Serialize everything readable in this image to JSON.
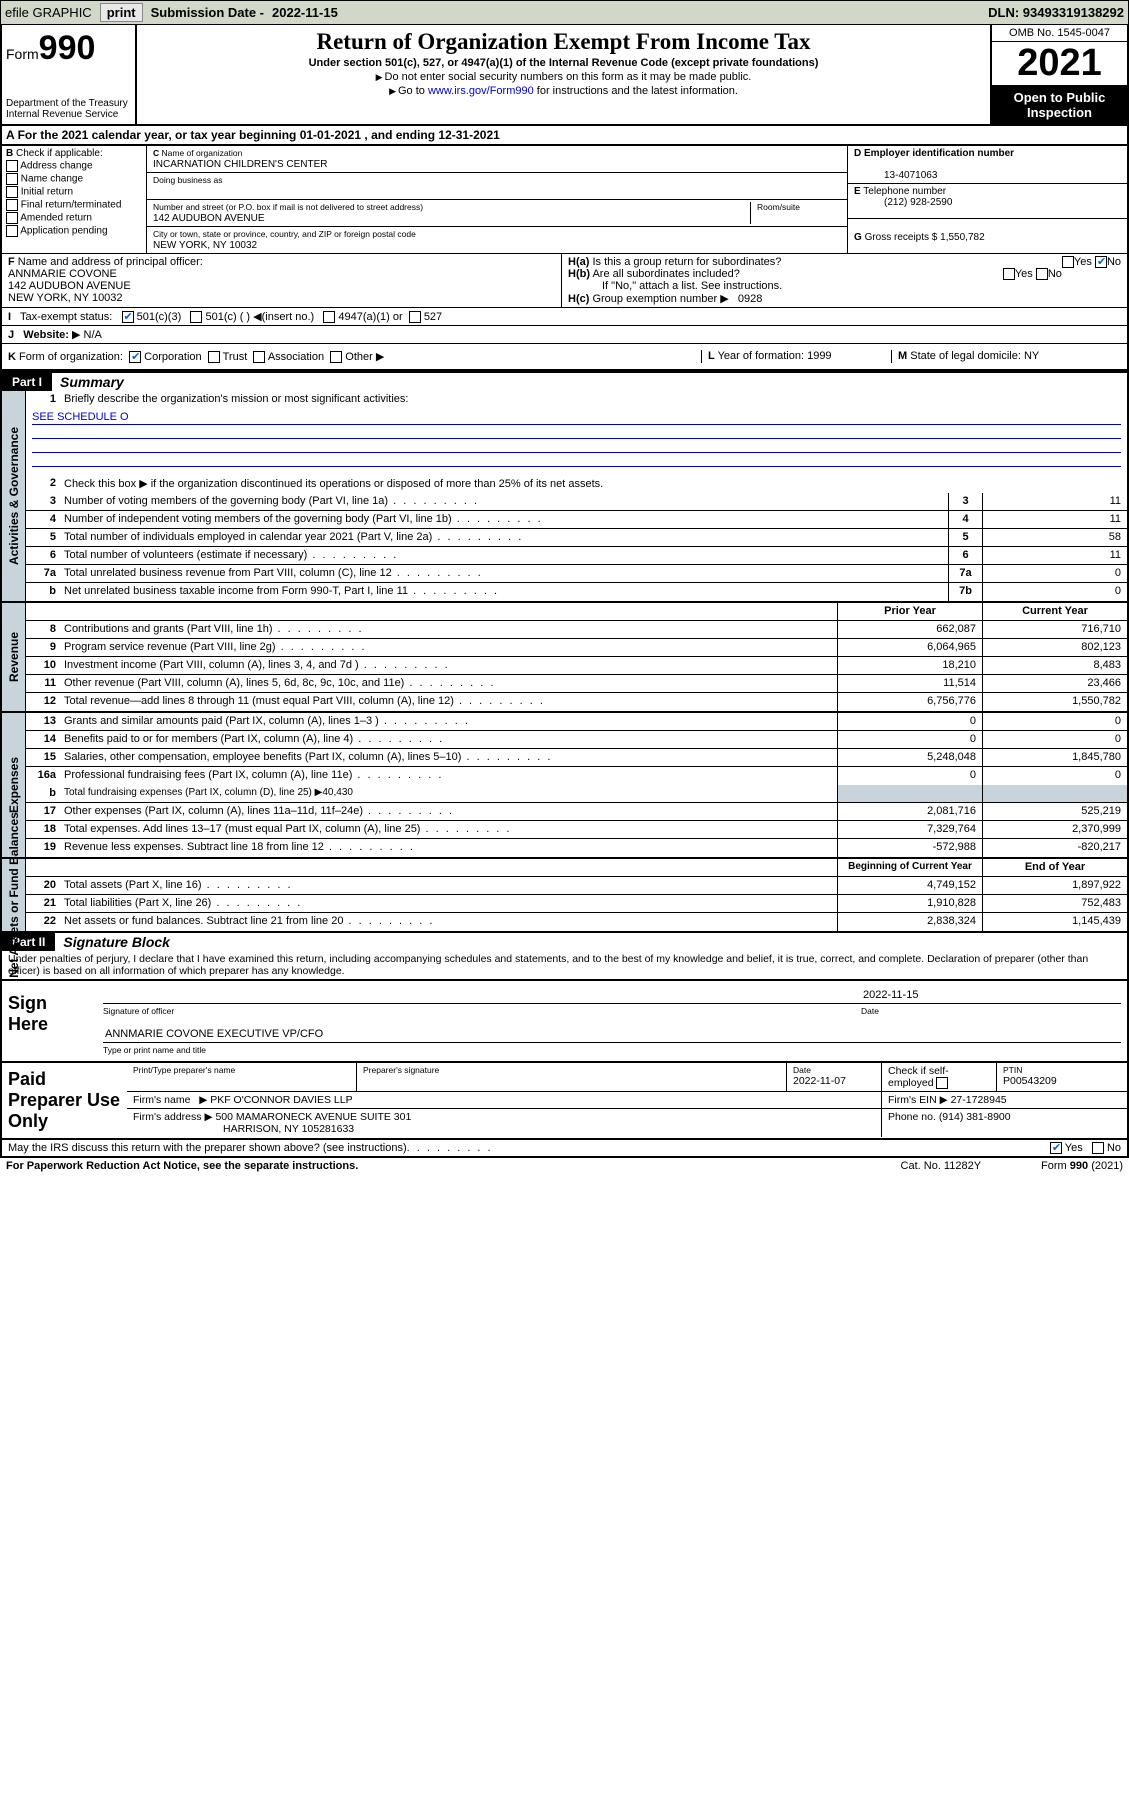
{
  "topbar": {
    "efile": "efile GRAPHIC",
    "print": "print",
    "sub_lbl": "Submission Date -",
    "sub_date": "2022-11-15",
    "dln": "DLN: 93493319138292"
  },
  "header": {
    "form_word": "Form",
    "form_num": "990",
    "dept": "Department of the Treasury",
    "irs": "Internal Revenue Service",
    "title": "Return of Organization Exempt From Income Tax",
    "sub1": "Under section 501(c), 527, or 4947(a)(1) of the Internal Revenue Code (except private foundations)",
    "sub2": "Do not enter social security numbers on this form as it may be made public.",
    "sub3_a": "Go to ",
    "sub3_link": "www.irs.gov/Form990",
    "sub3_b": " for instructions and the latest information.",
    "omb": "OMB No. 1545-0047",
    "year": "2021",
    "open": "Open to Public Inspection"
  },
  "A": {
    "text": "For the 2021 calendar year, or tax year beginning 01-01-2021   , and ending 12-31-2021"
  },
  "B": {
    "intro": "Check if applicable:",
    "opts": [
      "Address change",
      "Name change",
      "Initial return",
      "Final return/terminated",
      "Amended return",
      "Application pending"
    ],
    "lead": "B"
  },
  "C": {
    "name_lbl": "Name of organization",
    "name": "INCARNATION CHILDREN'S CENTER",
    "dba_lbl": "Doing business as",
    "dba": "",
    "street_lbl": "Number and street (or P.O. box if mail is not delivered to street address)",
    "room_lbl": "Room/suite",
    "street": "142 AUDUBON AVENUE",
    "city_lbl": "City or town, state or province, country, and ZIP or foreign postal code",
    "city": "NEW YORK, NY  10032",
    "lead": "C"
  },
  "D": {
    "lbl": "Employer identification number",
    "val": "13-4071063",
    "lead": "D"
  },
  "E": {
    "lbl": "Telephone number",
    "val": "(212) 928-2590",
    "lead": "E"
  },
  "G": {
    "lbl": "Gross receipts $",
    "val": "1,550,782",
    "lead": "G"
  },
  "F": {
    "lbl": "Name and address of principal officer:",
    "name": "ANNMARIE COVONE",
    "addr1": "142 AUDUBON AVENUE",
    "addr2": "NEW YORK, NY  10032",
    "lead": "F"
  },
  "H": {
    "a_lbl": "Is this a group return for subordinates?",
    "a_lead": "H(a)",
    "b_lbl": "Are all subordinates included?",
    "b_lead": "H(b)",
    "b_note": "If \"No,\" attach a list. See instructions.",
    "c_lbl": "Group exemption number",
    "c_lead": "H(c)",
    "c_val": "0928",
    "yes": "Yes",
    "no": "No"
  },
  "I": {
    "lbl": "Tax-exempt status:",
    "lead": "I",
    "o1": "501(c)(3)",
    "o2": "501(c) (  )",
    "o2b": "(insert no.)",
    "o3": "4947(a)(1) or",
    "o4": "527"
  },
  "J": {
    "lbl": "Website:",
    "val": "N/A",
    "lead": "J"
  },
  "K": {
    "lbl": "Form of organization:",
    "o1": "Corporation",
    "o2": "Trust",
    "o3": "Association",
    "o4": "Other",
    "lead": "K"
  },
  "L": {
    "lbl": "Year of formation:",
    "val": "1999",
    "lead": "L"
  },
  "M": {
    "lbl": "State of legal domicile:",
    "val": "NY",
    "lead": "M"
  },
  "partI": {
    "num": "Part I",
    "title": "Summary"
  },
  "summary": {
    "tabs": [
      "Activities & Governance",
      "Revenue",
      "Expenses",
      "Net Assets or Fund Balances"
    ],
    "q1": "Briefly describe the organization's mission or most significant activities:",
    "q1_ans": "SEE SCHEDULE O",
    "q2": "Check this box ▶   if the organization discontinued its operations or disposed of more than 25% of its net assets.",
    "rows_gov": [
      {
        "n": "3",
        "t": "Number of voting members of the governing body (Part VI, line 1a)",
        "box": "3",
        "v": "11"
      },
      {
        "n": "4",
        "t": "Number of independent voting members of the governing body (Part VI, line 1b)",
        "box": "4",
        "v": "11"
      },
      {
        "n": "5",
        "t": "Total number of individuals employed in calendar year 2021 (Part V, line 2a)",
        "box": "5",
        "v": "58"
      },
      {
        "n": "6",
        "t": "Total number of volunteers (estimate if necessary)",
        "box": "6",
        "v": "11"
      },
      {
        "n": "7a",
        "t": "Total unrelated business revenue from Part VIII, column (C), line 12",
        "box": "7a",
        "v": "0"
      },
      {
        "n": "b",
        "t": "Net unrelated business taxable income from Form 990-T, Part I, line 11",
        "box": "7b",
        "v": "0"
      }
    ],
    "hdr_prior": "Prior Year",
    "hdr_curr": "Current Year",
    "rows_rev": [
      {
        "n": "8",
        "t": "Contributions and grants (Part VIII, line 1h)",
        "p": "662,087",
        "c": "716,710"
      },
      {
        "n": "9",
        "t": "Program service revenue (Part VIII, line 2g)",
        "p": "6,064,965",
        "c": "802,123"
      },
      {
        "n": "10",
        "t": "Investment income (Part VIII, column (A), lines 3, 4, and 7d )",
        "p": "18,210",
        "c": "8,483"
      },
      {
        "n": "11",
        "t": "Other revenue (Part VIII, column (A), lines 5, 6d, 8c, 9c, 10c, and 11e)",
        "p": "11,514",
        "c": "23,466"
      },
      {
        "n": "12",
        "t": "Total revenue—add lines 8 through 11 (must equal Part VIII, column (A), line 12)",
        "p": "6,756,776",
        "c": "1,550,782"
      }
    ],
    "rows_exp": [
      {
        "n": "13",
        "t": "Grants and similar amounts paid (Part IX, column (A), lines 1–3 )",
        "p": "0",
        "c": "0"
      },
      {
        "n": "14",
        "t": "Benefits paid to or for members (Part IX, column (A), line 4)",
        "p": "0",
        "c": "0"
      },
      {
        "n": "15",
        "t": "Salaries, other compensation, employee benefits (Part IX, column (A), lines 5–10)",
        "p": "5,248,048",
        "c": "1,845,780"
      },
      {
        "n": "16a",
        "t": "Professional fundraising fees (Part IX, column (A), line 11e)",
        "p": "0",
        "c": "0"
      }
    ],
    "row_16b": {
      "n": "b",
      "t": "Total fundraising expenses (Part IX, column (D), line 25) ▶40,430"
    },
    "rows_exp2": [
      {
        "n": "17",
        "t": "Other expenses (Part IX, column (A), lines 11a–11d, 11f–24e)",
        "p": "2,081,716",
        "c": "525,219"
      },
      {
        "n": "18",
        "t": "Total expenses. Add lines 13–17 (must equal Part IX, column (A), line 25)",
        "p": "7,329,764",
        "c": "2,370,999"
      },
      {
        "n": "19",
        "t": "Revenue less expenses. Subtract line 18 from line 12",
        "p": "-572,988",
        "c": "-820,217"
      }
    ],
    "hdr_beg": "Beginning of Current Year",
    "hdr_end": "End of Year",
    "rows_net": [
      {
        "n": "20",
        "t": "Total assets (Part X, line 16)",
        "p": "4,749,152",
        "c": "1,897,922"
      },
      {
        "n": "21",
        "t": "Total liabilities (Part X, line 26)",
        "p": "1,910,828",
        "c": "752,483"
      },
      {
        "n": "22",
        "t": "Net assets or fund balances. Subtract line 21 from line 20",
        "p": "2,838,324",
        "c": "1,145,439"
      }
    ]
  },
  "partII": {
    "num": "Part II",
    "title": "Signature Block"
  },
  "sig": {
    "intro": "Under penalties of perjury, I declare that I have examined this return, including accompanying schedules and statements, and to the best of my knowledge and belief, it is true, correct, and complete. Declaration of preparer (other than officer) is based on all information of which preparer has any knowledge.",
    "here": "Sign Here",
    "sig_lbl": "Signature of officer",
    "date_lbl": "Date",
    "date": "2022-11-15",
    "name": "ANNMARIE COVONE  EXECUTIVE VP/CFO",
    "name_lbl": "Type or print name and title"
  },
  "prep": {
    "title": "Paid Preparer Use Only",
    "r1": {
      "a_lbl": "Print/Type preparer's name",
      "a": "",
      "b_lbl": "Preparer's signature",
      "b": "",
      "c_lbl": "Date",
      "c": "2022-11-07",
      "d_lbl": "Check      if self-employed",
      "e_lbl": "PTIN",
      "e": "P00543209"
    },
    "r2": {
      "a_lbl": "Firm's name",
      "a": "PKF O'CONNOR DAVIES LLP",
      "b_lbl": "Firm's EIN",
      "b": "27-1728945"
    },
    "r3": {
      "a_lbl": "Firm's address",
      "a": "500 MAMARONECK AVENUE SUITE 301",
      "a2": "HARRISON, NY 105281633",
      "b_lbl": "Phone no.",
      "b": "(914) 381-8900"
    }
  },
  "footer": {
    "may": "May the IRS discuss this return with the preparer shown above? (see instructions)",
    "yes": "Yes",
    "no": "No",
    "pra": "For Paperwork Reduction Act Notice, see the separate instructions.",
    "cat": "Cat. No. 11282Y",
    "form": "Form 990 (2021)"
  }
}
